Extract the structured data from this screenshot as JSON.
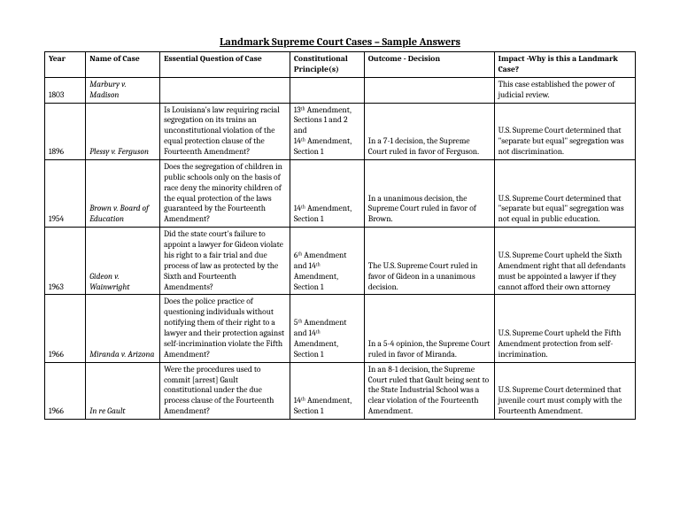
{
  "title": "Landmark Supreme Court Cases – Sample Answers",
  "headers": {
    "year": "Year",
    "name": "Name of Case",
    "question": "Essential Question of Case",
    "principle": "Constitutional Principle(s)",
    "outcome": "Outcome - Decision",
    "impact": "Impact -Why is this a Landmark Case?"
  },
  "rows": [
    {
      "year": "1803",
      "name": "Marbury v. Madison",
      "question": "",
      "principle": "",
      "outcome": "",
      "impact": "This case established the power of judicial review."
    },
    {
      "year": "1896",
      "name": "Plessy v. Ferguson",
      "question": "Is Louisiana's law requiring racial segregation on its trains an unconstitutional violation of the equal protection clause of the Fourteenth Amendment?",
      "principle": "13ᵗʰ Amendment, Sections 1 and 2 and\n14ᵗʰ Amendment, Section 1",
      "outcome": "In a 7-1 decision, the Supreme Court ruled in favor of Ferguson.",
      "impact": "U.S. Supreme Court determined that \"separate but equal\" segregation was not discrimination."
    },
    {
      "year": "1954",
      "name": "Brown v. Board of Education",
      "question": "Does the segregation of children in public schools only on the basis of race deny the minority children of the equal protection of the laws guaranteed by the Fourteenth Amendment?",
      "principle": "14ᵗʰ Amendment, Section 1",
      "outcome": "In a unanimous decision, the Supreme Court ruled in favor of Brown.",
      "impact": "U.S. Supreme Court determined that \"separate but equal\" segregation was not equal in public education."
    },
    {
      "year": "1963",
      "name": "Gideon v. Wainwright",
      "question": "Did the state court's failure to appoint a lawyer for Gideon violate his right to a fair trial and due process of law as protected by the Sixth and Fourteenth Amendments?",
      "principle": "6ᵗʰ Amendment and 14ᵗʰ Amendment, Section 1",
      "outcome": "The U.S. Supreme Court ruled in favor of Gideon in a unanimous decision.",
      "impact": "U.S. Supreme Court upheld the Sixth Amendment right that all defendants must be appointed a lawyer if they cannot afford their own attorney"
    },
    {
      "year": "1966",
      "name": "Miranda v. Arizona",
      "question": "Does the police practice of questioning individuals without notifying them of their right to a lawyer and their protection against self-incrimination violate the Fifth Amendment?",
      "principle": "5ᵗʰ Amendment and 14ᵗʰ Amendment, Section 1",
      "outcome": "In a 5-4 opinion, the Supreme Court ruled in favor of Miranda.",
      "impact": "U.S. Supreme Court upheld the Fifth Amendment protection from self-incrimination."
    },
    {
      "year": "1966",
      "name": "In re Gault",
      "question": "Were the procedures used to commit [arrest] Gault constitutional under the due process clause of the Fourteenth Amendment?",
      "principle": "14ᵗʰ Amendment, Section 1",
      "outcome": "In an 8-1 decision, the Supreme Court ruled that Gault being sent to the State Industrial School was a clear violation of the Fourteenth Amendment.",
      "impact": "U.S. Supreme Court determined that juvenile court must comply with the Fourteenth Amendment."
    }
  ]
}
